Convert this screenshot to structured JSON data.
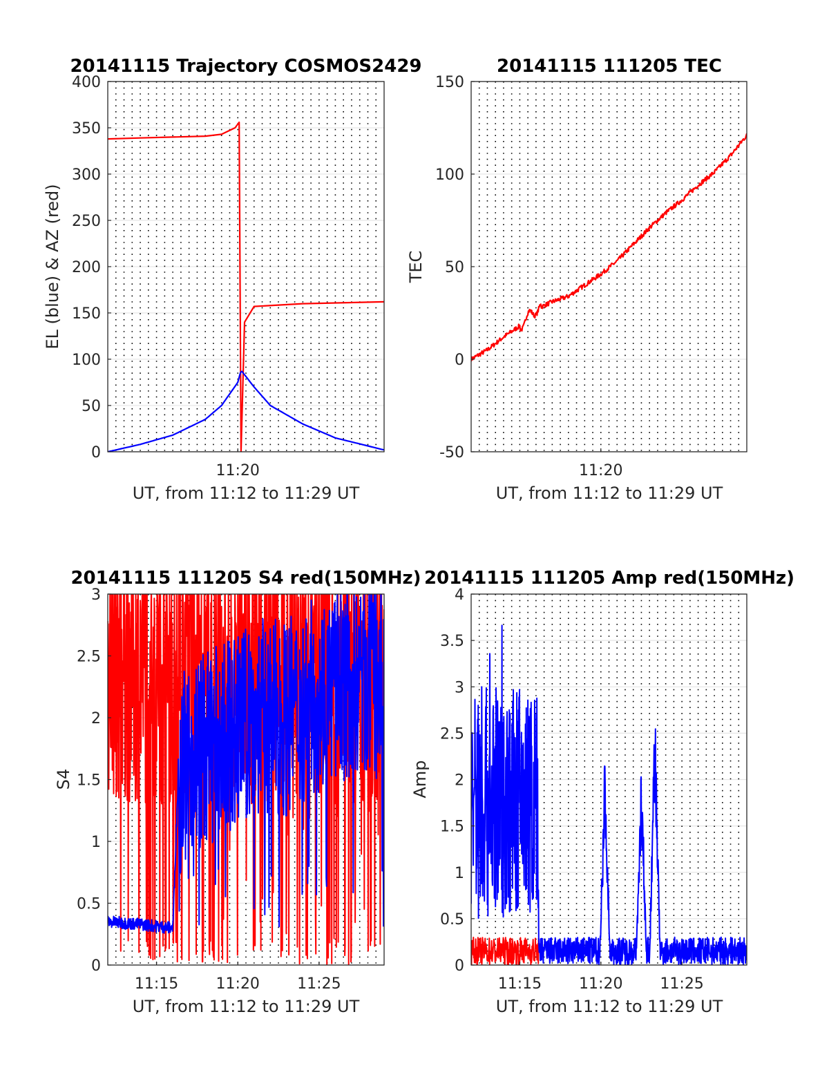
{
  "chart_data": [
    {
      "type": "line",
      "title": "20141115 Trajectory COSMOS2429",
      "xlabel": "UT, from 11:12 to 11:29 UT",
      "ylabel": "EL (blue) & AZ (red)",
      "xlim": [
        "11:12",
        "11:29"
      ],
      "ylim": [
        0,
        400
      ],
      "yticks": [
        "0",
        "50",
        "100",
        "150",
        "200",
        "250",
        "300",
        "350",
        "400"
      ],
      "xticks": [
        "11:20"
      ],
      "grid": "y-solid, x-dotted every 30 s",
      "series": [
        {
          "color": "#ff0000",
          "x": [
            "11:12",
            "11:14",
            "11:16",
            "11:18",
            "11:19",
            "11:19:50",
            "11:20:05",
            "11:20:12",
            "11:20:25",
            "11:21",
            "11:24",
            "11:29"
          ],
          "y": [
            338,
            339,
            340,
            341,
            343,
            350,
            356,
            0,
            140,
            157,
            160,
            162
          ]
        },
        {
          "color": "#0000ff",
          "x": [
            "11:12",
            "11:14",
            "11:16",
            "11:18",
            "11:19",
            "11:20",
            "11:20:12",
            "11:21",
            "11:22",
            "11:24",
            "11:26",
            "11:29"
          ],
          "y": [
            0,
            8,
            18,
            35,
            50,
            75,
            88,
            70,
            50,
            30,
            15,
            2
          ]
        }
      ]
    },
    {
      "type": "line",
      "title": "20141115 111205 TEC",
      "xlabel": "UT, from 11:12 to 11:29 UT",
      "ylabel": "TEC",
      "xlim": [
        "11:12",
        "11:29"
      ],
      "ylim": [
        -50,
        150
      ],
      "yticks": [
        "-50",
        "0",
        "50",
        "100",
        "150"
      ],
      "xticks": [
        "11:20"
      ],
      "series": [
        {
          "color": "#ff0000",
          "x": [
            "11:12",
            "11:13",
            "11:14",
            "11:15",
            "11:16",
            "11:17",
            "11:18",
            "11:19",
            "11:20",
            "11:21",
            "11:22",
            "11:23",
            "11:24",
            "11:25",
            "11:26",
            "11:27",
            "11:28",
            "11:29"
          ],
          "y": [
            0,
            5,
            12,
            18,
            27,
            31,
            34,
            40,
            46,
            53,
            62,
            71,
            79,
            86,
            94,
            101,
            110,
            121
          ]
        }
      ]
    },
    {
      "type": "line",
      "title": "20141115 111205 S4 red(150MHz)",
      "xlabel": "UT, from 11:12 to 11:29 UT",
      "ylabel": "S4",
      "xlim": [
        "11:12",
        "11:29"
      ],
      "ylim": [
        0,
        3
      ],
      "yticks": [
        "0",
        "0.5",
        "1",
        "1.5",
        "2",
        "2.5",
        "3"
      ],
      "xticks": [
        "11:15",
        "11:20",
        "11:25"
      ],
      "series": [
        {
          "color": "#ff0000",
          "x_range": [
            "11:12",
            "11:29"
          ],
          "typical_range": [
            1.3,
            3.0
          ],
          "note_range": [
            0,
            3
          ]
        },
        {
          "color": "#0000ff",
          "x_range": [
            "11:12",
            "11:29"
          ],
          "x": [
            "11:12",
            "11:14",
            "11:16",
            "11:16:20",
            "11:17",
            "11:19",
            "11:21",
            "11:23",
            "11:25",
            "11:27",
            "11:29"
          ],
          "y": [
            0.35,
            0.33,
            0.3,
            1.5,
            1.7,
            1.8,
            2.0,
            2.0,
            2.2,
            2.3,
            2.3
          ]
        }
      ]
    },
    {
      "type": "line",
      "title": "20141115 111205 Amp red(150MHz)",
      "xlabel": "UT, from 11:12 to 11:29 UT",
      "ylabel": "Amp",
      "xlim": [
        "11:12",
        "11:29"
      ],
      "ylim": [
        0,
        4
      ],
      "yticks": [
        "0",
        "0.5",
        "1",
        "1.5",
        "2",
        "2.5",
        "3",
        "3.5",
        "4"
      ],
      "xticks": [
        "11:15",
        "11:20",
        "11:25"
      ],
      "series": [
        {
          "color": "#ff0000",
          "x_range": [
            "11:12",
            "11:16:10"
          ],
          "typical_range": [
            0,
            0.3
          ]
        },
        {
          "color": "#0000ff",
          "segments": [
            {
              "x_range": [
                "11:12",
                "11:16:10"
              ],
              "typical_range": [
                0.5,
                3.0
              ],
              "max": 3.8
            },
            {
              "x_range": [
                "11:16:10",
                "11:29"
              ],
              "typical_range": [
                0,
                0.3
              ]
            },
            {
              "peak_x": "11:20:15",
              "peak_y": 2.4
            },
            {
              "peak_x": "11:22:30",
              "peak_y": 2.3
            },
            {
              "peak_x": "11:23:20",
              "peak_y": 3.0
            }
          ]
        }
      ]
    }
  ]
}
